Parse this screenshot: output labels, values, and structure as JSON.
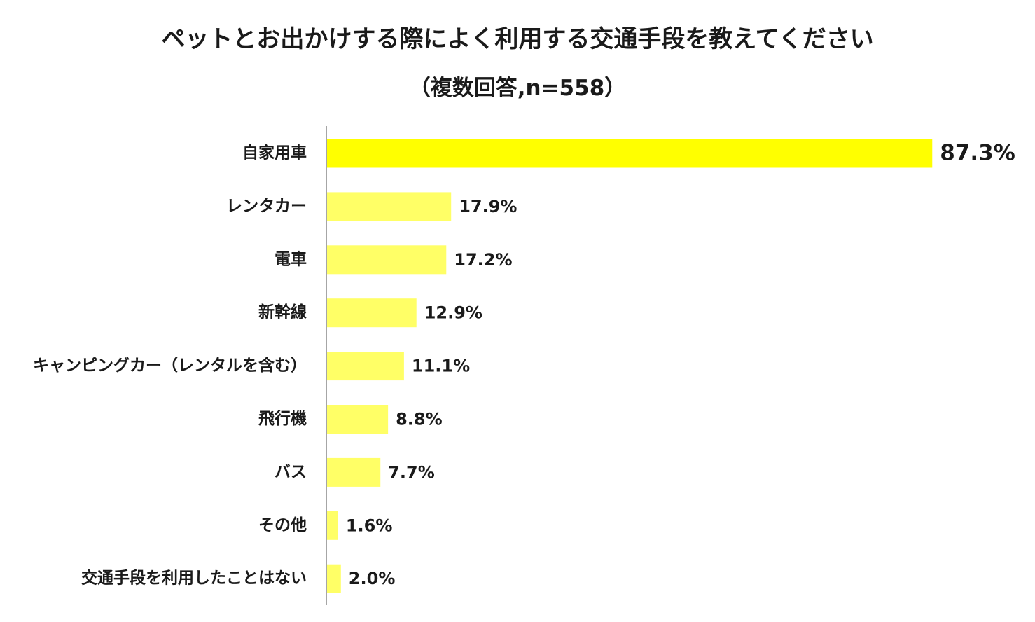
{
  "chart_data": {
    "type": "bar",
    "orientation": "horizontal",
    "title": "ペットとお出かけする際によく利用する交通手段を教えてください",
    "subtitle": "（複数回答,n=558）",
    "categories": [
      "自家用車",
      "レンタカー",
      "電車",
      "新幹線",
      "キャンピングカー（レンタルを含む）",
      "飛行機",
      "バス",
      "その他",
      "交通手段を利用したことはない"
    ],
    "values": [
      87.3,
      17.9,
      17.2,
      12.9,
      11.1,
      8.8,
      7.7,
      1.6,
      2.0
    ],
    "value_labels": [
      "87.3%",
      "17.9%",
      "17.2%",
      "12.9%",
      "11.1%",
      "8.8%",
      "7.7%",
      "1.6%",
      "2.0%"
    ],
    "xlim": [
      0,
      100
    ],
    "grid": false,
    "legend": "none",
    "highlight_index": 0,
    "colors": {
      "highlight": "#FFFF00",
      "bar": "#FFFF66",
      "axis": "#888888",
      "text": "#1a1a1a"
    }
  }
}
